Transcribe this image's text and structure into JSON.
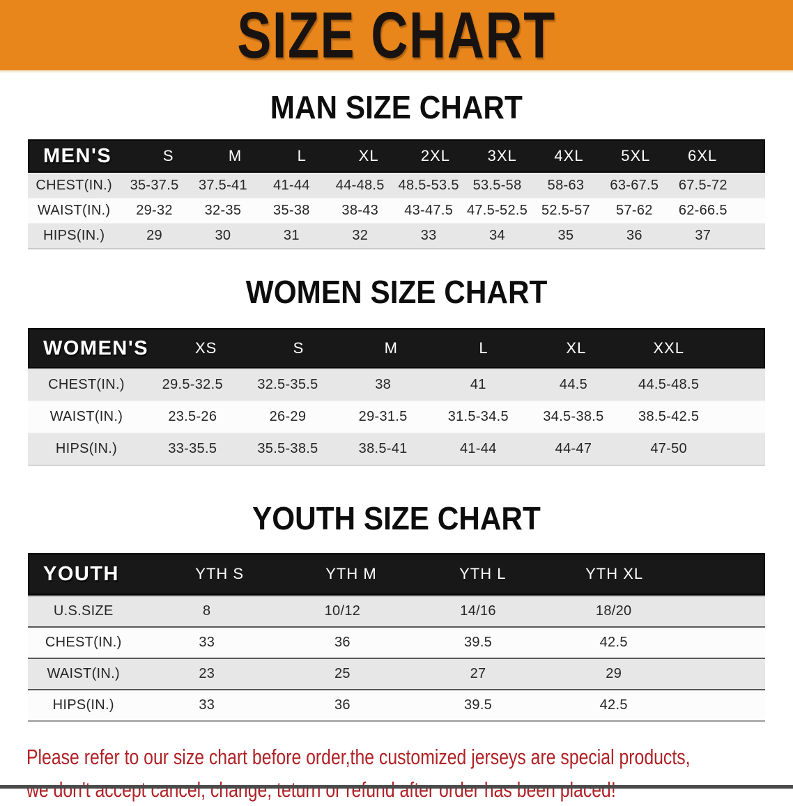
{
  "banner": {
    "title": "SIZE CHART",
    "bg_color": "#E8861C",
    "text_color": "#181310"
  },
  "sections": [
    {
      "title": "MAN SIZE CHART",
      "table": {
        "header_label": "MEN'S",
        "columns": [
          "S",
          "M",
          "L",
          "XL",
          "2XL",
          "3XL",
          "4XL",
          "5XL",
          "6XL"
        ],
        "rows": [
          {
            "label": "CHEST(IN.)",
            "values": [
              "35-37.5",
              "37.5-41",
              "41-44",
              "44-48.5",
              "48.5-53.5",
              "53.5-58",
              "58-63",
              "63-67.5",
              "67.5-72"
            ]
          },
          {
            "label": "WAIST(IN.)",
            "values": [
              "29-32",
              "32-35",
              "35-38",
              "38-43",
              "43-47.5",
              "47.5-52.5",
              "52.5-57",
              "57-62",
              "62-66.5"
            ]
          },
          {
            "label": "HIPS(IN.)",
            "values": [
              "29",
              "30",
              "31",
              "32",
              "33",
              "34",
              "35",
              "36",
              "37"
            ]
          }
        ]
      }
    },
    {
      "title": "WOMEN SIZE CHART",
      "table": {
        "header_label": "WOMEN'S",
        "columns": [
          "XS",
          "S",
          "M",
          "L",
          "XL",
          "XXL"
        ],
        "rows": [
          {
            "label": "CHEST(IN.)",
            "values": [
              "29.5-32.5",
              "32.5-35.5",
              "38",
              "41",
              "44.5",
              "44.5-48.5"
            ]
          },
          {
            "label": "WAIST(IN.)",
            "values": [
              "23.5-26",
              "26-29",
              "29-31.5",
              "31.5-34.5",
              "34.5-38.5",
              "38.5-42.5"
            ]
          },
          {
            "label": "HIPS(IN.)",
            "values": [
              "33-35.5",
              "35.5-38.5",
              "38.5-41",
              "41-44",
              "44-47",
              "47-50"
            ]
          }
        ]
      }
    },
    {
      "title": "YOUTH SIZE CHART",
      "table": {
        "header_label": "YOUTH",
        "columns": [
          "YTH S",
          "YTH M",
          "YTH L",
          "YTH XL"
        ],
        "rows": [
          {
            "label": "U.S.SIZE",
            "values": [
              "8",
              "10/12",
              "14/16",
              "18/20"
            ]
          },
          {
            "label": "CHEST(IN.)",
            "values": [
              "33",
              "36",
              "39.5",
              "42.5"
            ]
          },
          {
            "label": "WAIST(IN.)",
            "values": [
              "23",
              "25",
              "27",
              "29"
            ]
          },
          {
            "label": "HIPS(IN.)",
            "values": [
              "33",
              "36",
              "39.5",
              "42.5"
            ]
          }
        ]
      }
    }
  ],
  "disclaimer": {
    "line1": "Please refer to our size chart before order,the customized jerseys are special products,",
    "line2": "we don't accept cancel, change, teturn or refund after order has been placed!",
    "color": "#B02125"
  },
  "colors": {
    "banner_orange": "#E8861C",
    "header_black": "#181818",
    "row_gray": "#E7E7E7",
    "row_white": "#FCFCFC",
    "disclaimer_red": "#B02125"
  }
}
